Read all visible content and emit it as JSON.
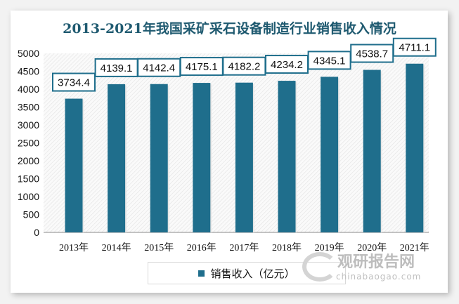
{
  "chart_data": {
    "type": "bar",
    "title": "2013-2021年我国采矿采石设备制造行业销售收入情况",
    "categories": [
      "2013年",
      "2014年",
      "2015年",
      "2016年",
      "2017年",
      "2018年",
      "2019年",
      "2020年",
      "2021年"
    ],
    "series": [
      {
        "name": "销售收入（亿元）",
        "values": [
          3734.4,
          4139.1,
          4142.4,
          4175.1,
          4182.2,
          4234.2,
          4345.1,
          4538.7,
          4711.1
        ]
      }
    ],
    "ylim": [
      0,
      5000
    ],
    "yticks": [
      0,
      500,
      1000,
      1500,
      2000,
      2500,
      3000,
      3500,
      4000,
      4500,
      5000
    ],
    "legend": "bottom",
    "colors": {
      "bar": "#1f6e8c",
      "label_border": "#1f6e8c"
    }
  },
  "watermark": {
    "cn": "观研报告网",
    "en": "chinabaogao.com"
  }
}
